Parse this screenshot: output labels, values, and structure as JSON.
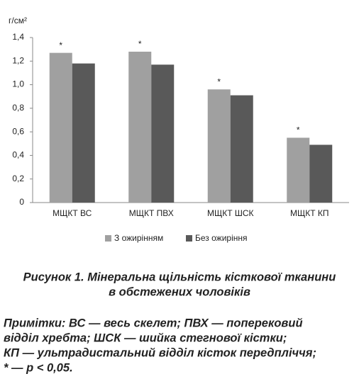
{
  "chart_data": {
    "type": "bar",
    "y_label": "г/см²",
    "categories": [
      "МЩКТ ВС",
      "МЩКТ ПВХ",
      "МЩКТ ШСК",
      "МЩКТ КП"
    ],
    "series": [
      {
        "name": "З ожирінням",
        "color": "#a0a0a0",
        "values": [
          1.27,
          1.28,
          0.96,
          0.55
        ]
      },
      {
        "name": "Без ожиріння",
        "color": "#595959",
        "values": [
          1.18,
          1.17,
          0.91,
          0.49
        ]
      }
    ],
    "significance_marks": [
      "*",
      "*",
      "*",
      "*"
    ],
    "ylim": [
      0,
      1.4
    ],
    "yticks": [
      0,
      {
        "value": 0.2,
        "label": "0,2"
      },
      {
        "value": 0.4,
        "label": "0,4"
      },
      {
        "value": 0.6,
        "label": "0,6"
      },
      {
        "value": 0.8,
        "label": "0,8"
      },
      {
        "value": 1.0,
        "label": "1,0"
      },
      {
        "value": 1.2,
        "label": "1,2"
      },
      {
        "value": 1.4,
        "label": "1,4"
      }
    ],
    "grid": false,
    "legend": "bottom"
  },
  "caption": {
    "lines": [
      "Рисунок 1. Мінеральна щільність кісткової тканини",
      "в обстежених чоловіків"
    ]
  },
  "notes": {
    "lines": [
      "Примітки: ВС — весь скелет; ПВХ — поперековий",
      "відділ хребта; ШСК — шийка стегнової кістки;",
      "КП — ультрадистальний відділ кісток передпліччя;",
      "* — р < 0,05."
    ]
  }
}
